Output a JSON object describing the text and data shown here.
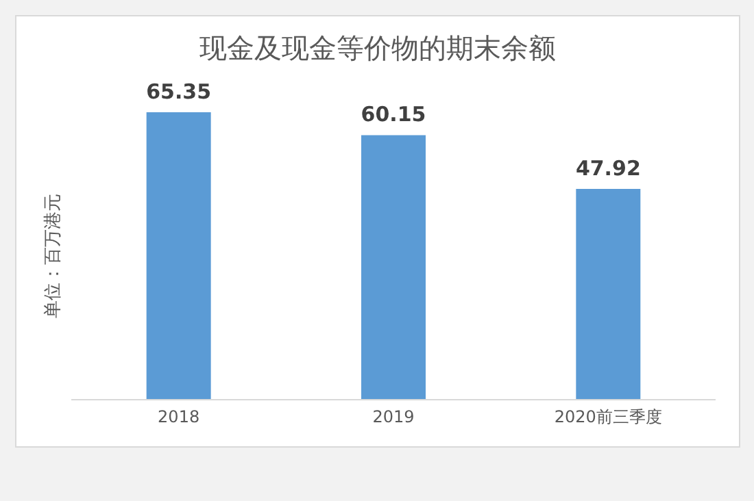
{
  "chart_data": {
    "type": "bar",
    "title": "现金及现金等价物的期末余额",
    "ylabel": "单位：百万港元",
    "categories": [
      "2018",
      "2019",
      "2020前三季度"
    ],
    "values": [
      65.35,
      60.15,
      47.92
    ],
    "color": "#5b9bd5",
    "data_labels": true
  }
}
